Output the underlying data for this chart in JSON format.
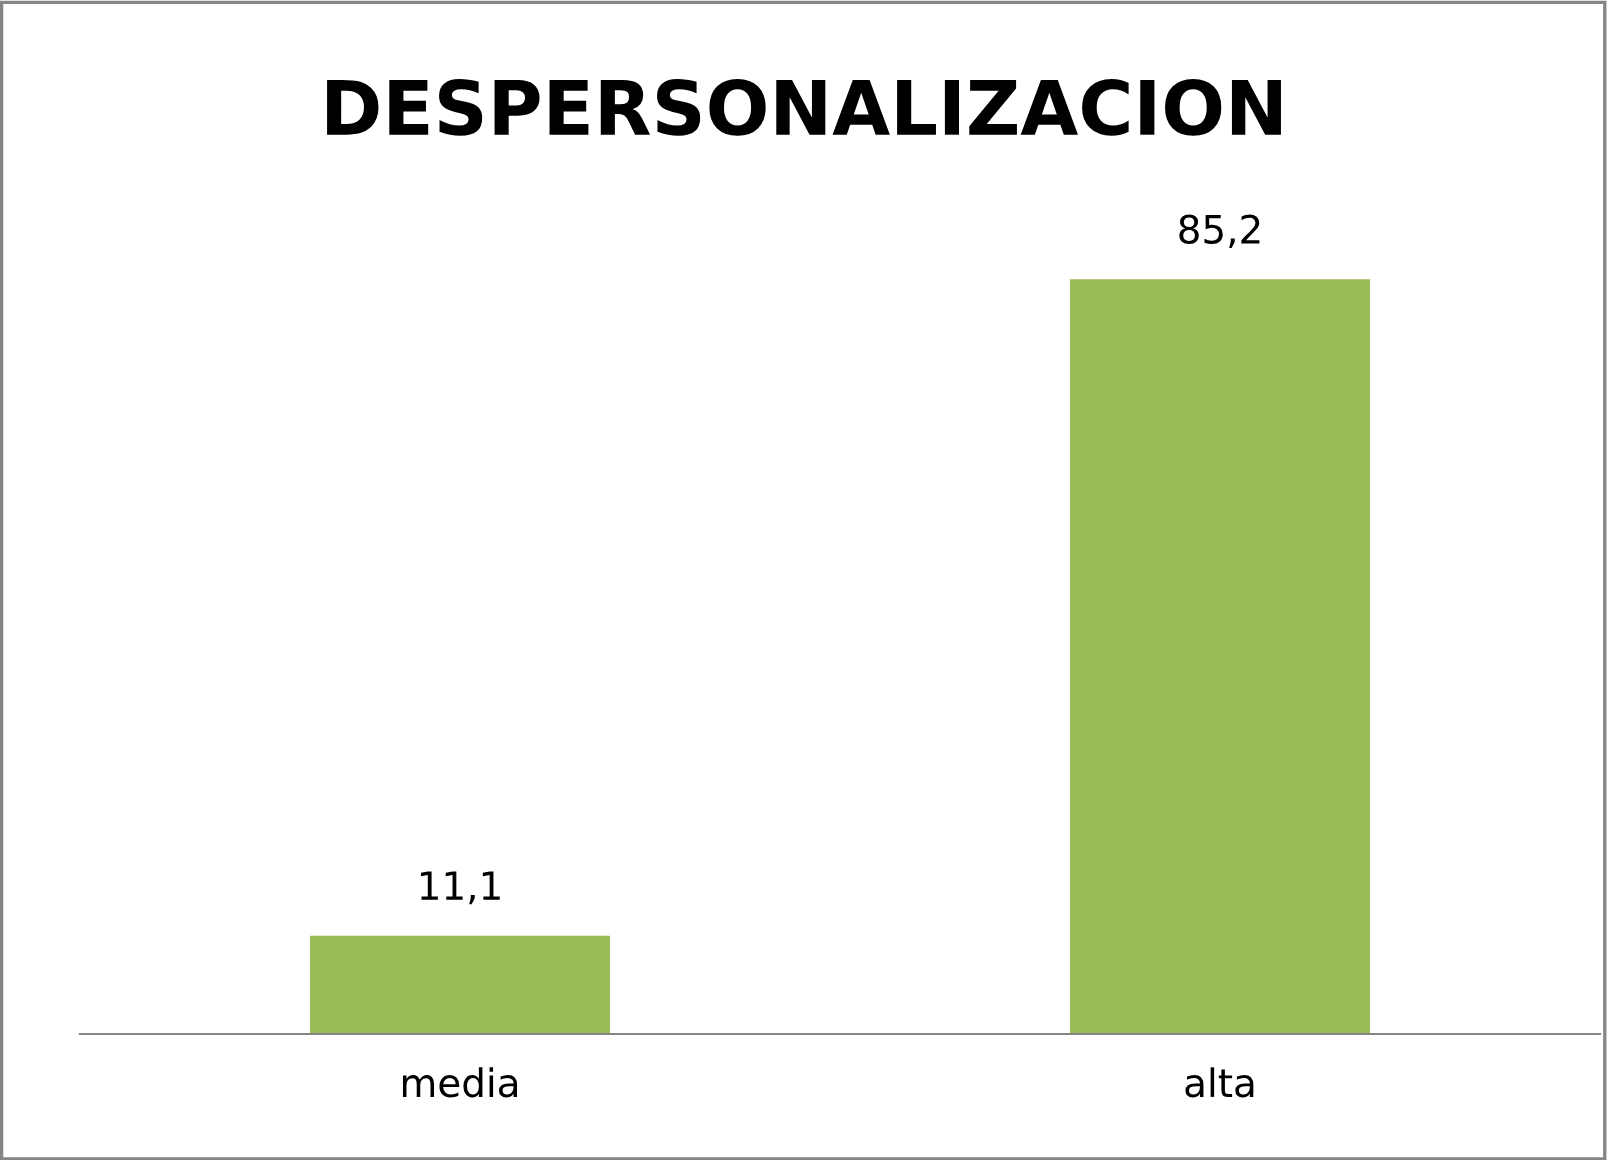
{
  "chart_data": {
    "type": "bar",
    "title": "DESPERSONALIZACION",
    "categories": [
      "media",
      "alta"
    ],
    "values": [
      11.1,
      85.2
    ],
    "value_labels": [
      "11,1",
      "85,2"
    ],
    "color": "#9bbb59",
    "grid": false,
    "legend": false
  }
}
